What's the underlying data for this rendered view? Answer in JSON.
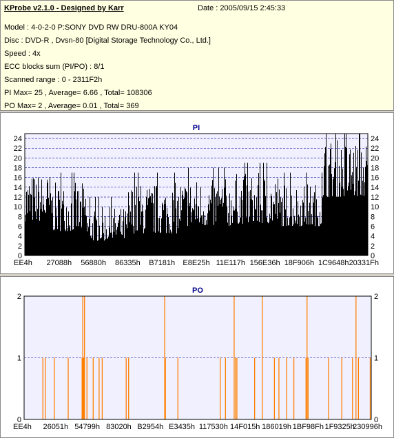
{
  "info": {
    "app_title": "KProbe v2.1.0 - Designed by Karr",
    "date": "Date : 2005/09/15 2:45:33",
    "lines": [
      "Model : 4-0-2-0 P:SONY    DVD RW DRU-800A  KY04",
      "Disc : DVD-R , Dvsn-80 [Digital Storage Technology Co., Ltd.]",
      "Speed : 4x",
      "ECC blocks sum (PI/PO) : 8/1",
      "Scanned range : 0 - 2311F2h",
      "PI Max= 25 , Average= 6.66 , Total= 108306",
      "PO Max= 2 , Average= 0.01 , Total= 369"
    ]
  },
  "colors": {
    "pi": "#000000",
    "po": "#ff7f00",
    "grid": "#0000a0",
    "plot_bg": "#f0f0ff"
  },
  "chart_data": [
    {
      "type": "bar",
      "title": "PI",
      "x_tick_labels": [
        "EE4h",
        "27088h",
        "56880h",
        "86335h",
        "B7181h",
        "E8E25h",
        "11E117h",
        "156E36h",
        "18F906h",
        "1C9648h",
        "20331Fh"
      ],
      "ylim": [
        0,
        25
      ],
      "y_ticks": [
        0,
        2,
        4,
        6,
        8,
        10,
        12,
        14,
        16,
        18,
        20,
        22,
        24
      ],
      "segments": [
        {
          "from": 0.0,
          "to": 0.08,
          "base": 7.0,
          "peak": 17.0
        },
        {
          "from": 0.08,
          "to": 0.18,
          "base": 5.0,
          "peak": 15.0
        },
        {
          "from": 0.18,
          "to": 0.3,
          "base": 3.0,
          "peak": 10.0
        },
        {
          "from": 0.3,
          "to": 0.45,
          "base": 4.5,
          "peak": 15.0
        },
        {
          "from": 0.45,
          "to": 0.6,
          "base": 6.0,
          "peak": 16.0
        },
        {
          "from": 0.6,
          "to": 0.74,
          "base": 6.5,
          "peak": 17.0
        },
        {
          "from": 0.74,
          "to": 0.87,
          "base": 6.0,
          "peak": 15.0
        },
        {
          "from": 0.87,
          "to": 1.0,
          "base": 12.0,
          "peak": 24.0
        }
      ],
      "max_spike": {
        "at": 0.975,
        "value": 25
      },
      "grid": true
    },
    {
      "type": "bar",
      "title": "PO",
      "x_tick_labels": [
        "EE4h",
        "26051h",
        "54799h",
        "83020h",
        "B2954h",
        "E3435h",
        "117530h",
        "14F015h",
        "186019h",
        "1BF98Fh",
        "1F9325h",
        "230996h"
      ],
      "ylim": [
        0,
        2
      ],
      "y_ticks": [
        0,
        1,
        2
      ],
      "x_span": [
        0,
        100
      ],
      "spikes": [
        {
          "x": 5.4,
          "value": 1
        },
        {
          "x": 6.1,
          "value": 1
        },
        {
          "x": 8.7,
          "value": 1
        },
        {
          "x": 12.7,
          "value": 1
        },
        {
          "x": 16.7,
          "value": 1
        },
        {
          "x": 16.9,
          "value": 2
        },
        {
          "x": 17.0,
          "value": 1
        },
        {
          "x": 17.2,
          "value": 1
        },
        {
          "x": 17.4,
          "value": 2
        },
        {
          "x": 18.1,
          "value": 1
        },
        {
          "x": 19.9,
          "value": 1
        },
        {
          "x": 21.6,
          "value": 1
        },
        {
          "x": 22.5,
          "value": 1
        },
        {
          "x": 29.4,
          "value": 1
        },
        {
          "x": 30.1,
          "value": 1
        },
        {
          "x": 40.5,
          "value": 2
        },
        {
          "x": 40.7,
          "value": 1
        },
        {
          "x": 44.3,
          "value": 1
        },
        {
          "x": 56.5,
          "value": 1
        },
        {
          "x": 58.0,
          "value": 1
        },
        {
          "x": 60.5,
          "value": 2
        },
        {
          "x": 60.9,
          "value": 1
        },
        {
          "x": 61.3,
          "value": 1
        },
        {
          "x": 66.4,
          "value": 1
        },
        {
          "x": 68.6,
          "value": 2
        },
        {
          "x": 72.1,
          "value": 1
        },
        {
          "x": 73.4,
          "value": 1
        },
        {
          "x": 75.6,
          "value": 1
        },
        {
          "x": 77.7,
          "value": 1
        },
        {
          "x": 81.2,
          "value": 1
        },
        {
          "x": 81.5,
          "value": 2
        },
        {
          "x": 81.8,
          "value": 1
        },
        {
          "x": 87.7,
          "value": 1
        },
        {
          "x": 91.5,
          "value": 1
        },
        {
          "x": 94.6,
          "value": 1
        },
        {
          "x": 95.6,
          "value": 2
        },
        {
          "x": 96.3,
          "value": 1
        },
        {
          "x": 99.7,
          "value": 1
        }
      ],
      "grid": true
    }
  ]
}
